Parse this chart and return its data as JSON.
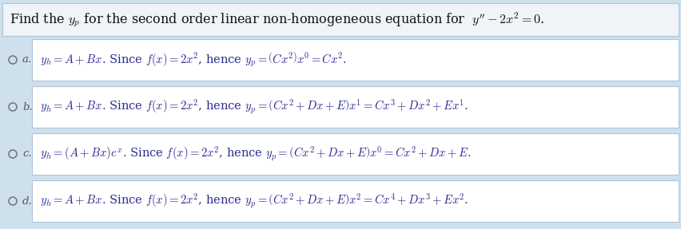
{
  "bg_color": "#cfe0ed",
  "title_bg": "#f0f4f8",
  "box_bg": "#ffffff",
  "box_edge": "#b0c4d8",
  "title_text": "Find the $y_p$ for the second order linear non-homogeneous equation for  $y'' - 2x^2 = 0$.",
  "title_fontsize": 11.5,
  "title_color": "#111111",
  "label_color": "#555566",
  "text_color": "#2a2a90",
  "text_fontsize": 10.5,
  "options": [
    {
      "label": "a.",
      "text": "$y_h = A + Bx$. Since $f(x) = 2x^2$, hence $y_p = \\left(Cx^2\\right)x^0 = Cx^2$."
    },
    {
      "label": "b.",
      "text": "$y_h = A + Bx$. Since $f(x) = 2x^2$, hence $y_p = \\left(Cx^2 + Dx + E\\right)x^1 = Cx^3 + Dx^2 + Ex^1$."
    },
    {
      "label": "c.",
      "text": "$y_h = (A + Bx)e^x$. Since $f(x) = 2x^2$, hence $y_p = \\left(Cx^2 + Dx + E\\right)x^0 = Cx^2 + Dx + E$."
    },
    {
      "label": "d.",
      "text": "$y_h = A + Bx$. Since $f(x) = 2x^2$, hence $y_p = \\left(Cx^2 + Dx + E\\right)x^2 = Cx^4 + Dx^3 + Ex^2$."
    }
  ]
}
